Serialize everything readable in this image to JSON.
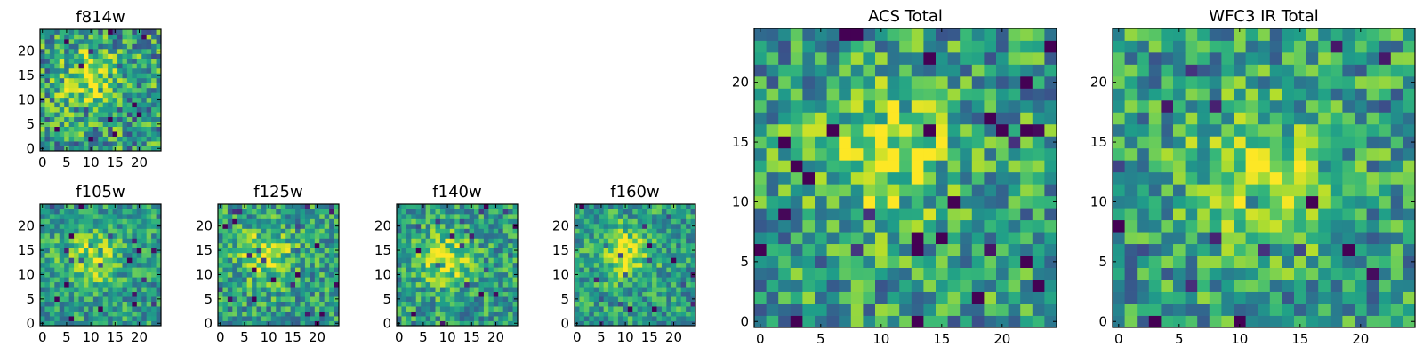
{
  "chart_data": [
    {
      "type": "heatmap",
      "title": "f814w",
      "xticks": [
        "0",
        "5",
        "10",
        "15",
        "20"
      ],
      "yticks": [
        "0",
        "5",
        "10",
        "15",
        "20"
      ],
      "xlim": [
        -0.5,
        24.5
      ],
      "ylim": [
        -0.5,
        24.5
      ],
      "grid_size": [
        25,
        25
      ],
      "colormap": "viridis",
      "bright_center": [
        9.5,
        14.5
      ],
      "noise": 0.42,
      "seed": 11
    },
    {
      "type": "heatmap",
      "title": "f105w",
      "xticks": [
        "0",
        "5",
        "10",
        "15",
        "20"
      ],
      "yticks": [
        "0",
        "5",
        "10",
        "15",
        "20"
      ],
      "xlim": [
        -0.5,
        24.5
      ],
      "ylim": [
        -0.5,
        24.5
      ],
      "grid_size": [
        25,
        25
      ],
      "colormap": "viridis",
      "bright_center": [
        10,
        13.5
      ],
      "noise": 0.3,
      "seed": 23
    },
    {
      "type": "heatmap",
      "title": "f125w",
      "xticks": [
        "0",
        "5",
        "10",
        "15",
        "20"
      ],
      "yticks": [
        "0",
        "5",
        "10",
        "15",
        "20"
      ],
      "xlim": [
        -0.5,
        24.5
      ],
      "ylim": [
        -0.5,
        24.5
      ],
      "grid_size": [
        25,
        25
      ],
      "colormap": "viridis",
      "bright_center": [
        9.5,
        14
      ],
      "noise": 0.34,
      "seed": 37
    },
    {
      "type": "heatmap",
      "title": "f140w",
      "xticks": [
        "0",
        "5",
        "10",
        "15",
        "20"
      ],
      "yticks": [
        "0",
        "5",
        "10",
        "15",
        "20"
      ],
      "xlim": [
        -0.5,
        24.5
      ],
      "ylim": [
        -0.5,
        24.5
      ],
      "grid_size": [
        25,
        25
      ],
      "colormap": "viridis",
      "bright_center": [
        9.5,
        13
      ],
      "noise": 0.32,
      "seed": 41
    },
    {
      "type": "heatmap",
      "title": "f160w",
      "xticks": [
        "0",
        "5",
        "10",
        "15",
        "20"
      ],
      "yticks": [
        "0",
        "5",
        "10",
        "15",
        "20"
      ],
      "xlim": [
        -0.5,
        24.5
      ],
      "ylim": [
        -0.5,
        24.5
      ],
      "grid_size": [
        25,
        25
      ],
      "colormap": "viridis",
      "bright_center": [
        10,
        14.5
      ],
      "noise": 0.3,
      "seed": 53
    },
    {
      "type": "heatmap",
      "title": "ACS Total",
      "xticks": [
        "0",
        "5",
        "10",
        "15",
        "20"
      ],
      "yticks": [
        "0",
        "5",
        "10",
        "15",
        "20"
      ],
      "xlim": [
        -0.5,
        24.5
      ],
      "ylim": [
        -0.5,
        24.5
      ],
      "grid_size": [
        25,
        25
      ],
      "colormap": "viridis",
      "bright_center": [
        10,
        14
      ],
      "noise": 0.38,
      "seed": 67
    },
    {
      "type": "heatmap",
      "title": "WFC3 IR Total",
      "xticks": [
        "0",
        "5",
        "10",
        "15",
        "20"
      ],
      "yticks": [
        "0",
        "5",
        "10",
        "15",
        "20"
      ],
      "xlim": [
        -0.5,
        24.5
      ],
      "ylim": [
        -0.5,
        24.5
      ],
      "grid_size": [
        25,
        25
      ],
      "colormap": "viridis",
      "bright_center": [
        11.5,
        12
      ],
      "noise": 0.36,
      "seed": 79
    }
  ]
}
